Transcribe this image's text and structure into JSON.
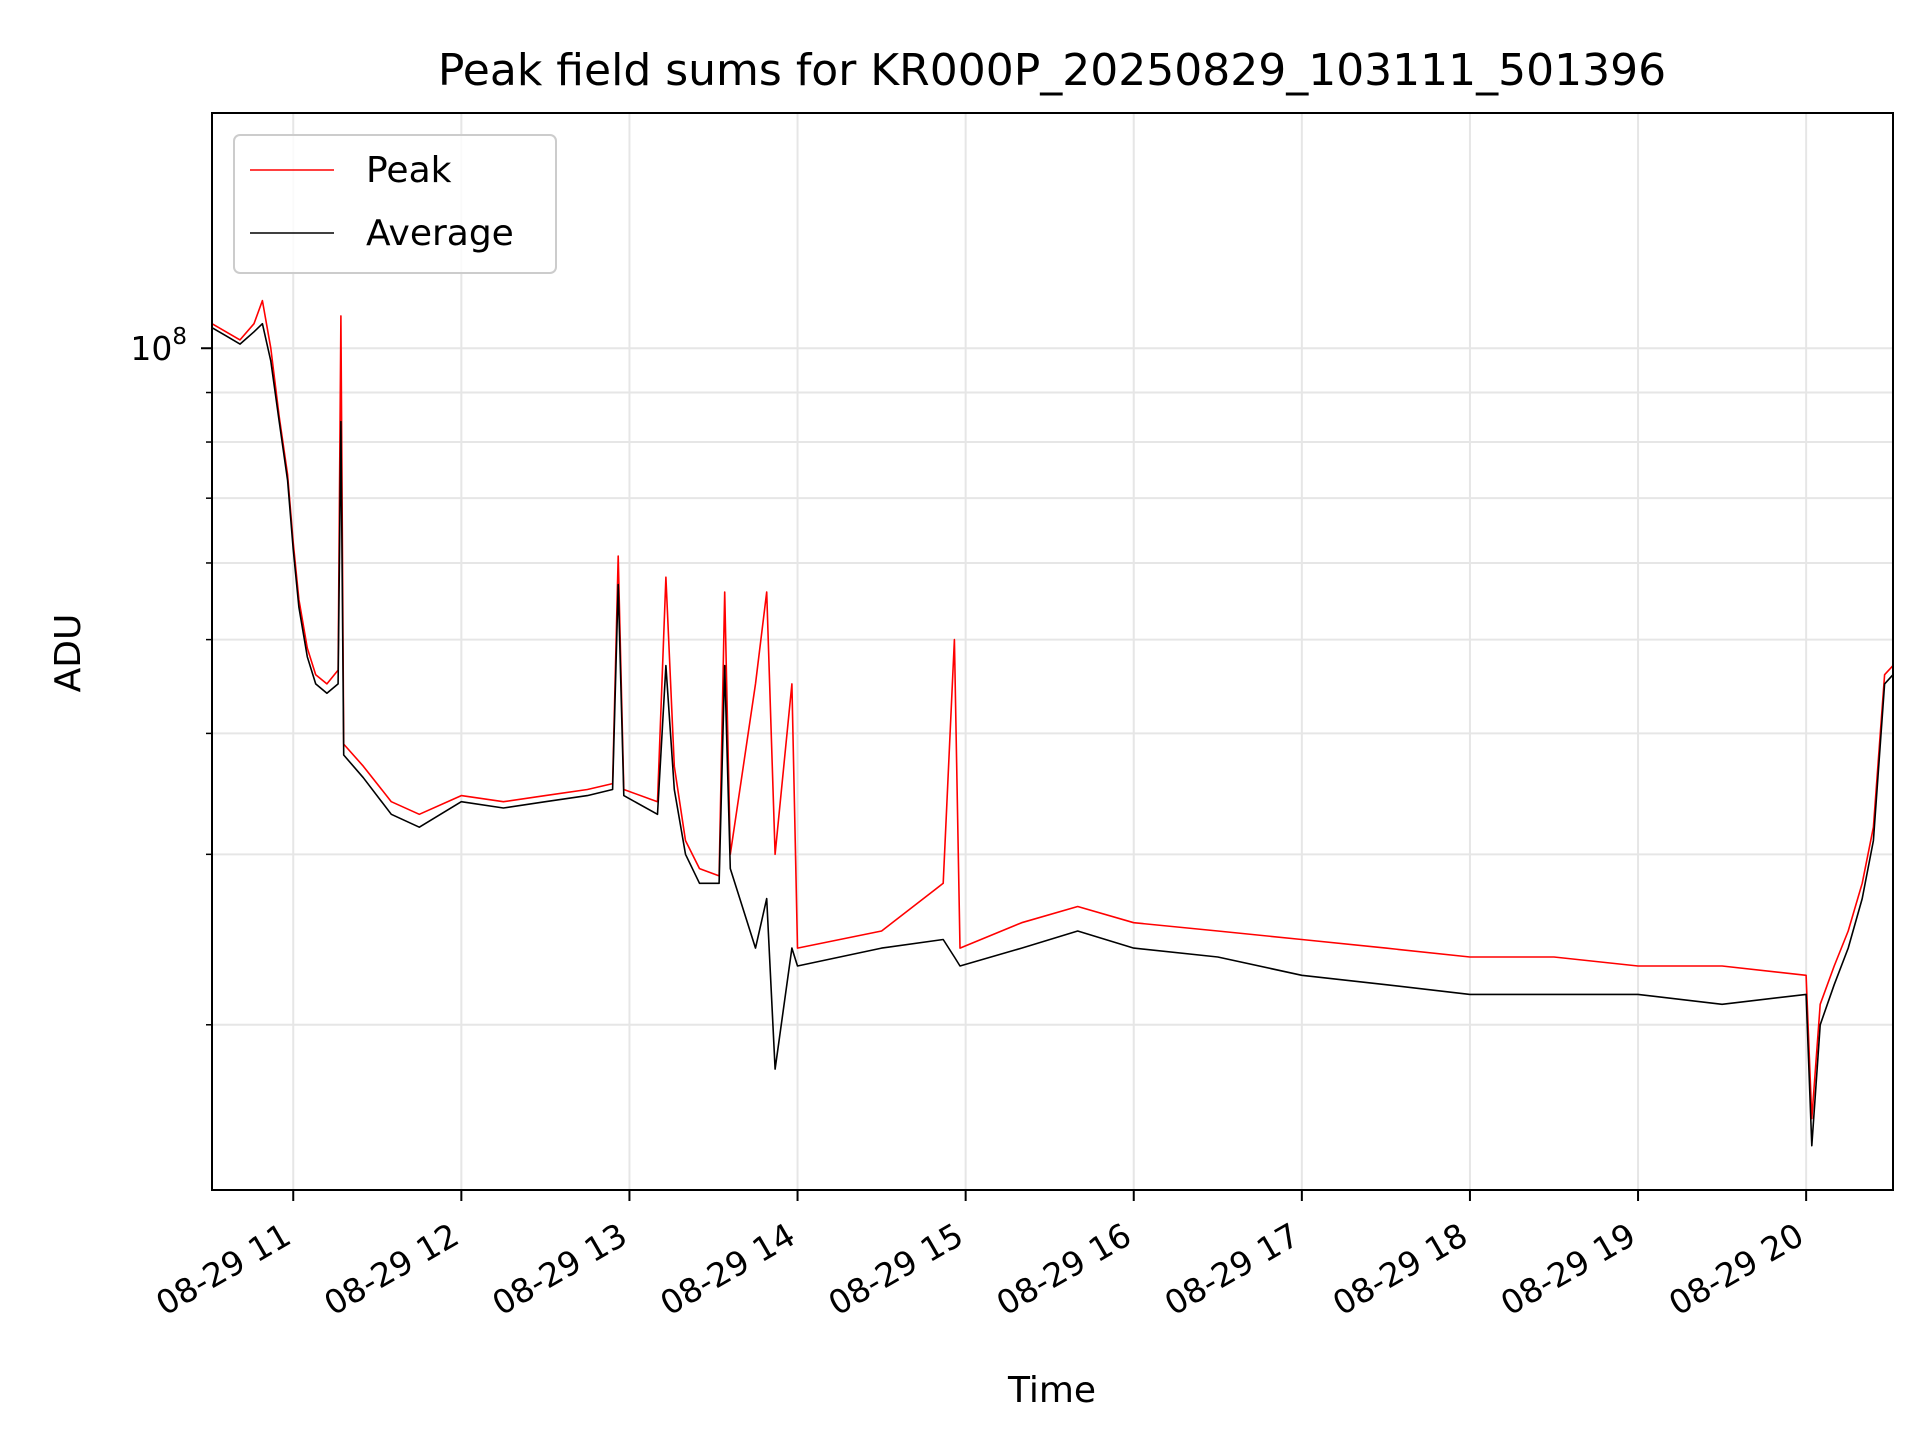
{
  "chart_data": {
    "type": "line",
    "title": "Peak field sums for KR000P_20250829_103111_501396",
    "xlabel": "Time",
    "ylabel": "ADU",
    "y_scale": "log",
    "x_range": [
      "2025-08-29 10:31",
      "2025-08-29 20:31"
    ],
    "ylim": [
      13500000,
      175000000
    ],
    "grid": true,
    "legend_position": "top-left",
    "x_ticks": [
      {
        "label": "08-29 11",
        "time": "2025-08-29 11:00"
      },
      {
        "label": "08-29 12",
        "time": "2025-08-29 12:00"
      },
      {
        "label": "08-29 13",
        "time": "2025-08-29 13:00"
      },
      {
        "label": "08-29 14",
        "time": "2025-08-29 14:00"
      },
      {
        "label": "08-29 15",
        "time": "2025-08-29 15:00"
      },
      {
        "label": "08-29 16",
        "time": "2025-08-29 16:00"
      },
      {
        "label": "08-29 17",
        "time": "2025-08-29 17:00"
      },
      {
        "label": "08-29 18",
        "time": "2025-08-29 18:00"
      },
      {
        "label": "08-29 19",
        "time": "2025-08-29 19:00"
      },
      {
        "label": "08-29 20",
        "time": "2025-08-29 20:00"
      }
    ],
    "y_ticks": [
      {
        "label": "10",
        "exponent": "8",
        "value": 100000000
      }
    ],
    "y_minor_ticks": [
      20000000,
      30000000,
      40000000,
      50000000,
      60000000,
      70000000,
      80000000,
      90000000,
      200000000
    ],
    "series": [
      {
        "name": "Peak",
        "color": "#ff0000",
        "points": [
          [
            "2025-08-29 10:31",
            106000000
          ],
          [
            "2025-08-29 10:36",
            104000000
          ],
          [
            "2025-08-29 10:41",
            102000000
          ],
          [
            "2025-08-29 10:46",
            106000000
          ],
          [
            "2025-08-29 10:49",
            112000000
          ],
          [
            "2025-08-29 10:52",
            100000000
          ],
          [
            "2025-08-29 10:55",
            85000000
          ],
          [
            "2025-08-29 10:58",
            74000000
          ],
          [
            "2025-08-29 11:00",
            63000000
          ],
          [
            "2025-08-29 11:02",
            55000000
          ],
          [
            "2025-08-29 11:05",
            49000000
          ],
          [
            "2025-08-29 11:08",
            46000000
          ],
          [
            "2025-08-29 11:12",
            45000000
          ],
          [
            "2025-08-29 11:16",
            46500000
          ],
          [
            "2025-08-29 11:17",
            108000000
          ],
          [
            "2025-08-29 11:18",
            39000000
          ],
          [
            "2025-08-29 11:25",
            37000000
          ],
          [
            "2025-08-29 11:35",
            34000000
          ],
          [
            "2025-08-29 11:45",
            33000000
          ],
          [
            "2025-08-29 12:00",
            34500000
          ],
          [
            "2025-08-29 12:15",
            34000000
          ],
          [
            "2025-08-29 12:30",
            34500000
          ],
          [
            "2025-08-29 12:45",
            35000000
          ],
          [
            "2025-08-29 12:54",
            35500000
          ],
          [
            "2025-08-29 12:56",
            61000000
          ],
          [
            "2025-08-29 12:58",
            35000000
          ],
          [
            "2025-08-29 13:10",
            34000000
          ],
          [
            "2025-08-29 13:13",
            58000000
          ],
          [
            "2025-08-29 13:16",
            37000000
          ],
          [
            "2025-08-29 13:20",
            31000000
          ],
          [
            "2025-08-29 13:25",
            29000000
          ],
          [
            "2025-08-29 13:32",
            28500000
          ],
          [
            "2025-08-29 13:34",
            56000000
          ],
          [
            "2025-08-29 13:36",
            30000000
          ],
          [
            "2025-08-29 13:45",
            45000000
          ],
          [
            "2025-08-29 13:49",
            56000000
          ],
          [
            "2025-08-29 13:52",
            30000000
          ],
          [
            "2025-08-29 13:58",
            45000000
          ],
          [
            "2025-08-29 14:00",
            24000000
          ],
          [
            "2025-08-29 14:30",
            25000000
          ],
          [
            "2025-08-29 14:52",
            28000000
          ],
          [
            "2025-08-29 14:56",
            50000000
          ],
          [
            "2025-08-29 14:58",
            24000000
          ],
          [
            "2025-08-29 15:20",
            25500000
          ],
          [
            "2025-08-29 15:40",
            26500000
          ],
          [
            "2025-08-29 16:00",
            25500000
          ],
          [
            "2025-08-29 16:30",
            25000000
          ],
          [
            "2025-08-29 17:00",
            24500000
          ],
          [
            "2025-08-29 17:30",
            24000000
          ],
          [
            "2025-08-29 18:00",
            23500000
          ],
          [
            "2025-08-29 18:30",
            23500000
          ],
          [
            "2025-08-29 19:00",
            23000000
          ],
          [
            "2025-08-29 19:30",
            23000000
          ],
          [
            "2025-08-29 20:00",
            22500000
          ],
          [
            "2025-08-29 20:02",
            16000000
          ],
          [
            "2025-08-29 20:05",
            21000000
          ],
          [
            "2025-08-29 20:10",
            23000000
          ],
          [
            "2025-08-29 20:15",
            25000000
          ],
          [
            "2025-08-29 20:20",
            28000000
          ],
          [
            "2025-08-29 20:24",
            32000000
          ],
          [
            "2025-08-29 20:28",
            46000000
          ],
          [
            "2025-08-29 20:31",
            47000000
          ]
        ]
      },
      {
        "name": "Average",
        "color": "#000000",
        "points": [
          [
            "2025-08-29 10:31",
            105000000
          ],
          [
            "2025-08-29 10:36",
            103000000
          ],
          [
            "2025-08-29 10:41",
            101000000
          ],
          [
            "2025-08-29 10:46",
            104000000
          ],
          [
            "2025-08-29 10:49",
            106000000
          ],
          [
            "2025-08-29 10:52",
            97000000
          ],
          [
            "2025-08-29 10:55",
            84000000
          ],
          [
            "2025-08-29 10:58",
            73000000
          ],
          [
            "2025-08-29 11:00",
            62000000
          ],
          [
            "2025-08-29 11:02",
            54000000
          ],
          [
            "2025-08-29 11:05",
            48000000
          ],
          [
            "2025-08-29 11:08",
            45000000
          ],
          [
            "2025-08-29 11:12",
            44000000
          ],
          [
            "2025-08-29 11:16",
            45000000
          ],
          [
            "2025-08-29 11:17",
            84000000
          ],
          [
            "2025-08-29 11:18",
            38000000
          ],
          [
            "2025-08-29 11:25",
            36000000
          ],
          [
            "2025-08-29 11:35",
            33000000
          ],
          [
            "2025-08-29 11:45",
            32000000
          ],
          [
            "2025-08-29 12:00",
            34000000
          ],
          [
            "2025-08-29 12:15",
            33500000
          ],
          [
            "2025-08-29 12:30",
            34000000
          ],
          [
            "2025-08-29 12:45",
            34500000
          ],
          [
            "2025-08-29 12:54",
            35000000
          ],
          [
            "2025-08-29 12:56",
            57000000
          ],
          [
            "2025-08-29 12:58",
            34500000
          ],
          [
            "2025-08-29 13:10",
            33000000
          ],
          [
            "2025-08-29 13:13",
            47000000
          ],
          [
            "2025-08-29 13:16",
            35000000
          ],
          [
            "2025-08-29 13:20",
            30000000
          ],
          [
            "2025-08-29 13:25",
            28000000
          ],
          [
            "2025-08-29 13:32",
            28000000
          ],
          [
            "2025-08-29 13:34",
            47000000
          ],
          [
            "2025-08-29 13:36",
            29000000
          ],
          [
            "2025-08-29 13:45",
            24000000
          ],
          [
            "2025-08-29 13:49",
            27000000
          ],
          [
            "2025-08-29 13:52",
            18000000
          ],
          [
            "2025-08-29 13:58",
            24000000
          ],
          [
            "2025-08-29 14:00",
            23000000
          ],
          [
            "2025-08-29 14:30",
            24000000
          ],
          [
            "2025-08-29 14:52",
            24500000
          ],
          [
            "2025-08-29 14:56",
            23500000
          ],
          [
            "2025-08-29 14:58",
            23000000
          ],
          [
            "2025-08-29 15:20",
            24000000
          ],
          [
            "2025-08-29 15:40",
            25000000
          ],
          [
            "2025-08-29 16:00",
            24000000
          ],
          [
            "2025-08-29 16:30",
            23500000
          ],
          [
            "2025-08-29 17:00",
            22500000
          ],
          [
            "2025-08-29 17:30",
            22000000
          ],
          [
            "2025-08-29 18:00",
            21500000
          ],
          [
            "2025-08-29 18:30",
            21500000
          ],
          [
            "2025-08-29 19:00",
            21500000
          ],
          [
            "2025-08-29 19:30",
            21000000
          ],
          [
            "2025-08-29 20:00",
            21500000
          ],
          [
            "2025-08-29 20:02",
            15000000
          ],
          [
            "2025-08-29 20:05",
            20000000
          ],
          [
            "2025-08-29 20:10",
            22000000
          ],
          [
            "2025-08-29 20:15",
            24000000
          ],
          [
            "2025-08-29 20:20",
            27000000
          ],
          [
            "2025-08-29 20:24",
            31000000
          ],
          [
            "2025-08-29 20:28",
            45000000
          ],
          [
            "2025-08-29 20:31",
            46000000
          ]
        ]
      }
    ]
  }
}
